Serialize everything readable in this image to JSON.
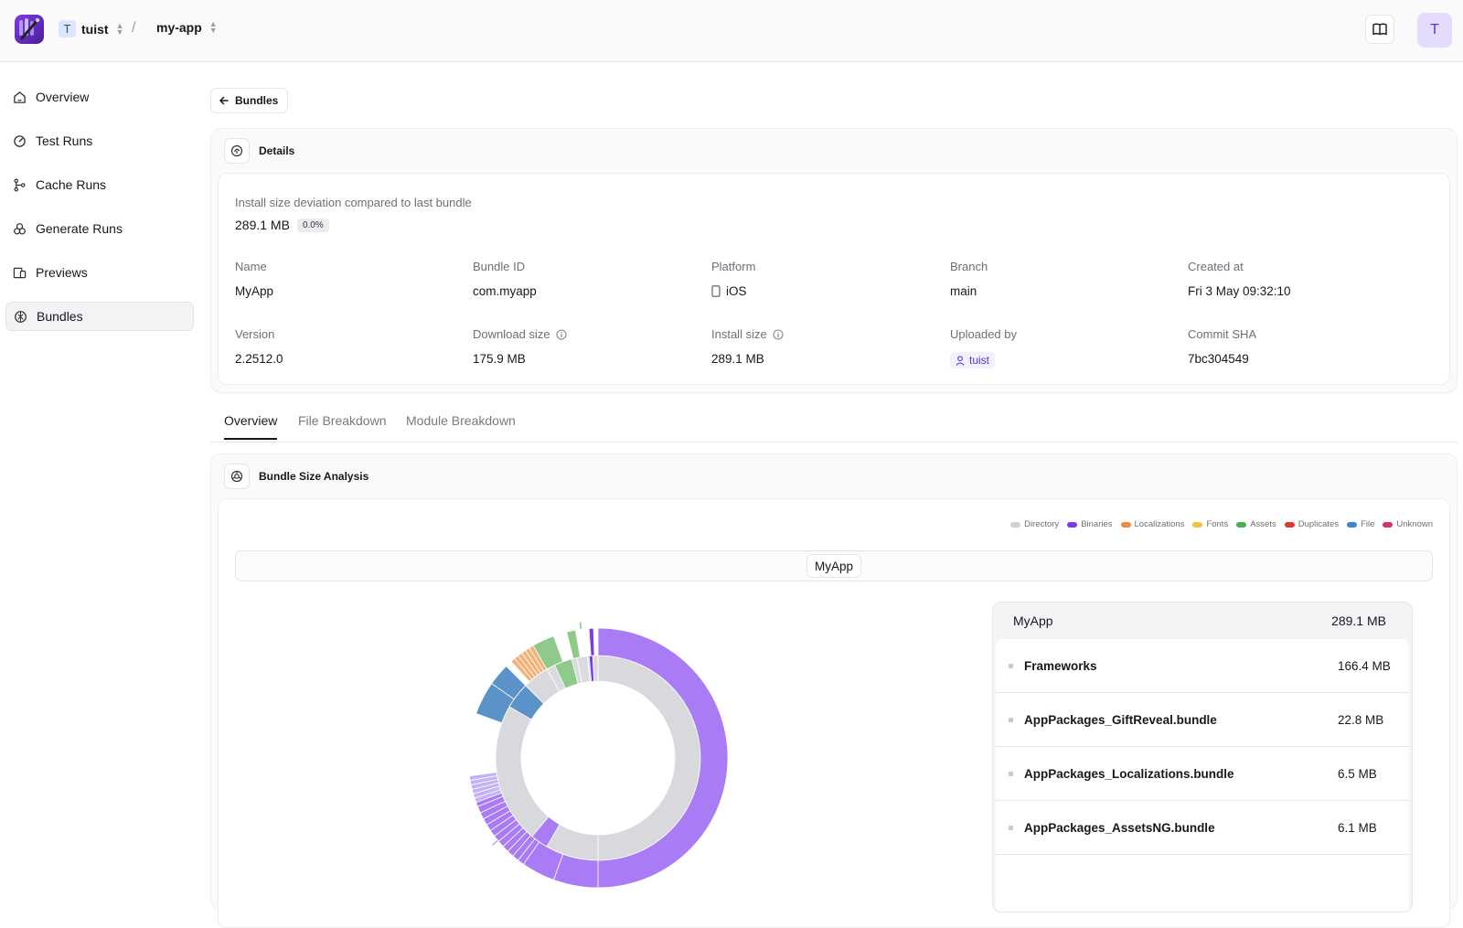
{
  "header": {
    "org_initial": "T",
    "org_name": "tuist",
    "separator": "/",
    "project_name": "my-app",
    "avatar_initial": "T"
  },
  "sidebar": {
    "items": [
      {
        "label": "Overview",
        "icon": "home-icon"
      },
      {
        "label": "Test Runs",
        "icon": "gauge-icon"
      },
      {
        "label": "Cache Runs",
        "icon": "git-branch-icon"
      },
      {
        "label": "Generate Runs",
        "icon": "circles-icon"
      },
      {
        "label": "Previews",
        "icon": "devices-icon"
      },
      {
        "label": "Bundles",
        "icon": "bundle-icon",
        "active": true
      }
    ]
  },
  "back": {
    "label": "Bundles"
  },
  "details": {
    "title": "Details",
    "deviation_label": "Install size deviation compared to last bundle",
    "deviation_value": "289.1 MB",
    "deviation_pct": "0.0%",
    "fields": {
      "name": {
        "label": "Name",
        "value": "MyApp"
      },
      "bundle_id": {
        "label": "Bundle ID",
        "value": "com.myapp"
      },
      "platform": {
        "label": "Platform",
        "value": "iOS"
      },
      "branch": {
        "label": "Branch",
        "value": "main"
      },
      "created_at": {
        "label": "Created at",
        "value": "Fri 3 May 09:32:10"
      },
      "version": {
        "label": "Version",
        "value": "2.2512.0"
      },
      "download_size": {
        "label": "Download size",
        "value": "175.9 MB"
      },
      "install_size": {
        "label": "Install size",
        "value": "289.1 MB"
      },
      "uploaded_by": {
        "label": "Uploaded by",
        "value": "tuist"
      },
      "commit_sha": {
        "label": "Commit SHA",
        "value": "7bc304549"
      }
    }
  },
  "tabs": [
    {
      "label": "Overview",
      "active": true
    },
    {
      "label": "File Breakdown"
    },
    {
      "label": "Module Breakdown"
    }
  ],
  "analysis": {
    "title": "Bundle Size Analysis",
    "legend": [
      {
        "label": "Directory",
        "color": "#cfd1d6"
      },
      {
        "label": "Binaries",
        "color": "#7c3aed"
      },
      {
        "label": "Localizations",
        "color": "#f08c3a"
      },
      {
        "label": "Fonts",
        "color": "#f3c33b"
      },
      {
        "label": "Assets",
        "color": "#4caf50"
      },
      {
        "label": "Duplicates",
        "color": "#e0392b"
      },
      {
        "label": "File",
        "color": "#3a86c8"
      },
      {
        "label": "Unknown",
        "color": "#d6336c"
      }
    ],
    "path": "MyApp",
    "panel": {
      "name": "MyApp",
      "size": "289.1 MB",
      "rows": [
        {
          "name": "Frameworks",
          "size": "166.4 MB"
        },
        {
          "name": "AppPackages_GiftReveal.bundle",
          "size": "22.8 MB"
        },
        {
          "name": "AppPackages_Localizations.bundle",
          "size": "6.5 MB"
        },
        {
          "name": "AppPackages_AssetsNG.bundle",
          "size": "6.1 MB"
        }
      ]
    }
  }
}
